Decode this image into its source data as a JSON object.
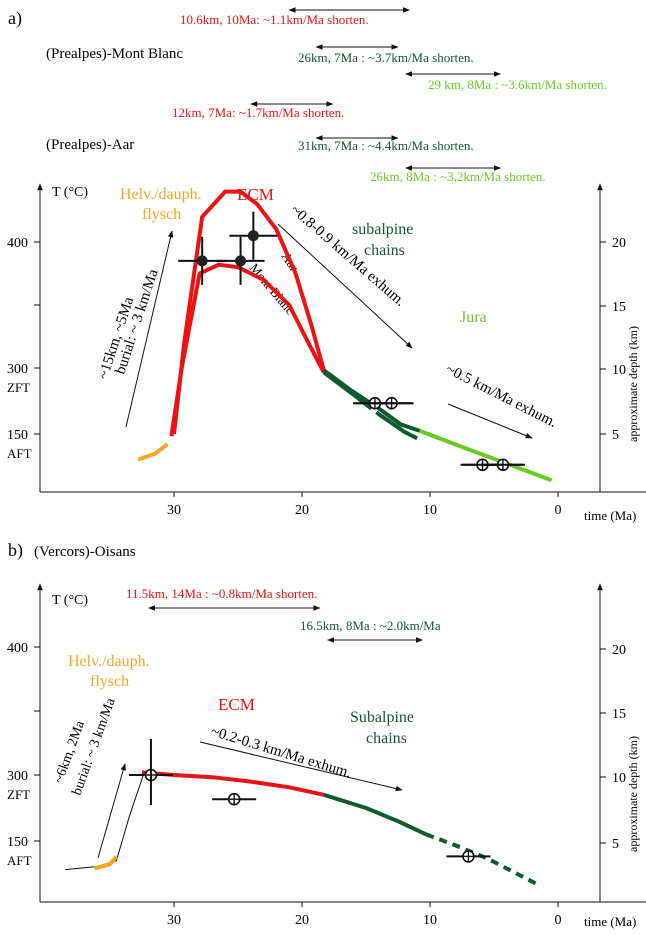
{
  "colors": {
    "red": "#ee1111",
    "dark_green": "#0d5c2e",
    "light_green": "#66cc22",
    "orange": "#f5a623",
    "black": "#111111"
  },
  "panel_a": {
    "label": "a)",
    "subtitle_mont_blanc": "(Prealpes)-Mont Blanc",
    "subtitle_aar": "(Prealpes)-Aar",
    "shortening": [
      {
        "text": "10.6km, 10Ma: ~1.1km/Ma shorten.",
        "color": "red",
        "range": [
          21.3,
          11.3
        ]
      },
      {
        "text": "26km, 7Ma : ~3.7km/Ma shorten.",
        "color": "dark_green",
        "range": [
          19.2,
          12.2
        ]
      },
      {
        "text": "29 km, 8Ma : ~3.6km/Ma shorten.",
        "color": "light_green",
        "range": [
          12.2,
          4.2
        ]
      },
      {
        "text": "12km, 7Ma: ~1.7km/Ma shorten.",
        "color": "red",
        "range": [
          24.3,
          17.3
        ]
      },
      {
        "text": "31km, 7Ma : ~4.4km/Ma shorten.",
        "color": "dark_green",
        "range": [
          19.2,
          12.2
        ]
      },
      {
        "text": "26km, 8Ma : ~3,2km/Ma shorten.",
        "color": "light_green",
        "range": [
          12.2,
          4.2
        ]
      }
    ],
    "labels": {
      "flysch": "Helv./dauph.",
      "flysch2": "flysch",
      "ecm": "ECM",
      "subalpine": "subalpine",
      "subalpine2": "chains",
      "jura": "Jura",
      "aar": "Aar",
      "mont_blanc": "Mont Blanc",
      "burial1": "~15km, ~5Ma",
      "burial2": "burial: ~ 3 km/Ma",
      "exhum1": "~0.8-0.9 km/Ma exhum.",
      "exhum2": "~0.5 km/Ma exhum."
    }
  },
  "panel_b": {
    "label": "b)",
    "subtitle": "(Vercors)-Oisans",
    "shortening": [
      {
        "text": "11.5km, 14Ma : ~0.8km/Ma shorten.",
        "color": "red",
        "range": [
          32.3,
          18.3
        ]
      },
      {
        "text": "16.5km, 8Ma :  ~2.0km/Ma",
        "color": "dark_green",
        "range": [
          18.3,
          10.3
        ]
      }
    ],
    "labels": {
      "flysch": "Helv./dauph.",
      "flysch2": "flysch",
      "ecm": "ECM",
      "subalpine": "Subalpine",
      "subalpine2": "chains",
      "burial1": "~6km, 2Ma",
      "burial2": "burial: ~ 3 km/Ma",
      "exhum1": "~0.2-0.3 km/Ma exhum."
    }
  },
  "axes": {
    "y_label": "T (°C)",
    "x_label": "time (Ma)",
    "y2_label": "approximate depth (km)",
    "x_ticks": [
      {
        "value": 30,
        "label": "30"
      },
      {
        "value": 20,
        "label": "20"
      },
      {
        "value": 10,
        "label": "10"
      },
      {
        "value": 0,
        "label": "0"
      }
    ],
    "y_ticks": [
      {
        "value": 400,
        "label": "400"
      },
      {
        "value": 300,
        "label": "300"
      },
      {
        "value": 150,
        "label": "150"
      }
    ],
    "y_tick_sublabels": {
      "300": "ZFT",
      "150": "AFT"
    },
    "depth_ticks": [
      {
        "value": 20,
        "label": "20"
      },
      {
        "value": 15,
        "label": "15"
      },
      {
        "value": 10,
        "label": "10"
      },
      {
        "value": 5,
        "label": "5"
      }
    ]
  },
  "chart_data": [
    {
      "type": "line",
      "panel": "a",
      "xlabel": "time (Ma)",
      "ylabel": "T (°C)",
      "y2label": "approximate depth (km)",
      "x_axis": "reversed",
      "series": [
        {
          "name": "Helv./dauph. flysch",
          "color": "orange",
          "x": [
            32.8,
            31.5,
            30.5
          ],
          "y": [
            92,
            105,
            127
          ]
        },
        {
          "name": "Aar",
          "color": "red",
          "x": [
            30.0,
            29.2,
            27.8,
            26.0,
            24.8,
            23.5,
            22.0,
            20.5,
            19.3,
            18.3
          ],
          "y": [
            150,
            320,
            420,
            440,
            440,
            430,
            410,
            375,
            335,
            295
          ]
        },
        {
          "name": "Mont Blanc",
          "color": "red",
          "x": [
            30.2,
            29.4,
            28.0,
            26.5,
            25.0,
            23.0,
            21.0,
            19.5,
            18.3
          ],
          "y": [
            145,
            300,
            375,
            382,
            380,
            370,
            350,
            320,
            290
          ]
        },
        {
          "name": "Mont Blanc",
          "color": "dark_green",
          "x": [
            18.3,
            16.0,
            14.0,
            12.0,
            11.0
          ],
          "y": [
            290,
            240,
            195,
            155,
            140
          ]
        },
        {
          "name": "Aar",
          "color": "dark_green",
          "x": [
            18.3,
            16.2,
            14.0,
            12.3,
            10.8
          ],
          "y": [
            295,
            250,
            208,
            172,
            157
          ]
        },
        {
          "name": "Jura",
          "color": "light_green",
          "x": [
            10.8,
            7.0,
            4.0,
            0.5
          ],
          "y": [
            157,
            115,
            83,
            45
          ]
        }
      ],
      "points": [
        {
          "x": 27.8,
          "y": 385,
          "style": "filled"
        },
        {
          "x": 24.8,
          "y": 385,
          "style": "filled"
        },
        {
          "x": 23.8,
          "y": 405,
          "style": "filled"
        },
        {
          "x": 14.3,
          "y": 220,
          "style": "open"
        },
        {
          "x": 13.0,
          "y": 220,
          "style": "open"
        },
        {
          "x": 5.9,
          "y": 80,
          "style": "open"
        },
        {
          "x": 4.3,
          "y": 80,
          "style": "open"
        }
      ]
    },
    {
      "type": "line",
      "panel": "b",
      "xlabel": "time (Ma)",
      "ylabel": "T (°C)",
      "y2label": "approximate depth (km)",
      "x_axis": "reversed",
      "series": [
        {
          "name": "burial",
          "color": "black",
          "x": [
            38.5,
            36.0,
            34.5,
            33.5,
            32.3
          ],
          "y": [
            85,
            92,
            105,
            205,
            303
          ]
        },
        {
          "name": "Helv./dauph. flysch",
          "color": "orange",
          "x": [
            36.2,
            35.0,
            34.5
          ],
          "y": [
            88,
            97,
            115
          ]
        },
        {
          "name": "ECM",
          "color": "red",
          "x": [
            32.5,
            30.0,
            27.0,
            24.0,
            21.0,
            18.3
          ],
          "y": [
            302,
            300,
            295,
            285,
            272,
            255
          ]
        },
        {
          "name": "Subalpine chains",
          "color": "dark_green",
          "x": [
            18.3,
            15.0,
            12.5,
            10.3
          ],
          "y": [
            255,
            225,
            195,
            165
          ]
        },
        {
          "name": "Subalpine chains",
          "color": "dark_green",
          "x": [
            10.3,
            8.0,
            5.5,
            3.5,
            1.5
          ],
          "y": [
            165,
            140,
            110,
            80,
            50
          ]
        }
      ],
      "points": [
        {
          "x": 31.8,
          "y": 300,
          "style": "open"
        },
        {
          "x": 25.3,
          "y": 245,
          "style": "open"
        },
        {
          "x": 7.0,
          "y": 115,
          "style": "open"
        }
      ]
    }
  ]
}
